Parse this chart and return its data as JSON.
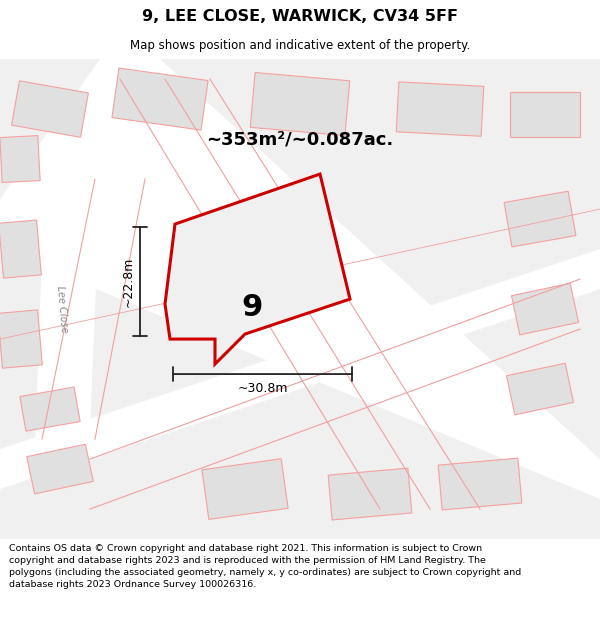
{
  "title": "9, LEE CLOSE, WARWICK, CV34 5FF",
  "subtitle": "Map shows position and indicative extent of the property.",
  "footer": "Contains OS data © Crown copyright and database right 2021. This information is subject to Crown copyright and database rights 2023 and is reproduced with the permission of HM Land Registry. The polygons (including the associated geometry, namely x, y co-ordinates) are subject to Crown copyright and database rights 2023 Ordnance Survey 100026316.",
  "area_label": "~353m²/~0.087ac.",
  "width_label": "~30.8m",
  "height_label": "~22.8m",
  "plot_number": "9",
  "street_label": "Lee Close",
  "map_bg": "#f2f2f2",
  "road_color": "#ffffff",
  "plot_outline_color": "#cc0000",
  "building_fill": "#e0e0e0",
  "building_stroke": "#f5a0a0",
  "dim_color": "#222222"
}
